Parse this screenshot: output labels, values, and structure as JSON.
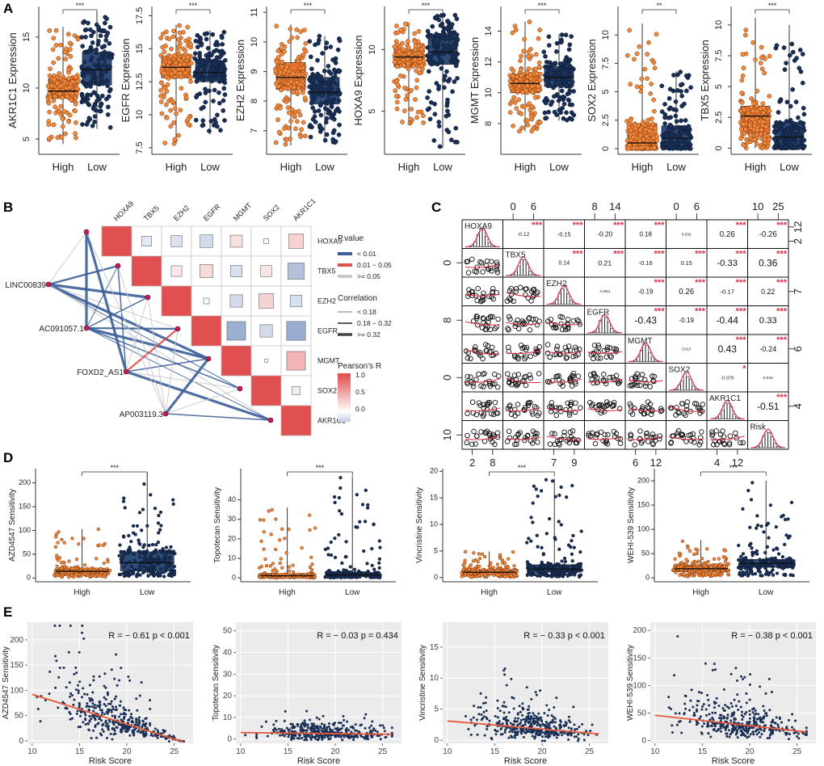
{
  "colors": {
    "high": "#e8732a",
    "high_dot": "#f08a3c",
    "low": "#2e4d7b",
    "low_dot": "#1a2f55",
    "heat_red": "#e05050",
    "heat_blue": "#7f97c4",
    "edge_sig": "#3b5e9a",
    "edge_mid": "#d84a4a",
    "edge_ns": "#c8c8c8",
    "node": "#c8185a",
    "star": "#e0304a",
    "fit": "#e85a3a",
    "grid_bg": "#ebebeb"
  },
  "panel_labels": [
    "A",
    "B",
    "C",
    "D",
    "E"
  ],
  "panelA": [
    {
      "ylabel": "AKR1C1 Expression",
      "sig": "***",
      "ticks": [
        5,
        10,
        15
      ],
      "ylim": [
        3.5,
        18
      ],
      "high": {
        "q1": 9.0,
        "med": 9.7,
        "q3": 10.9,
        "lo": 4.5,
        "hi": 16.0
      },
      "low": {
        "q1": 10.3,
        "med": 11.8,
        "q3": 13.5,
        "lo": 6.0,
        "hi": 17.5
      }
    },
    {
      "ylabel": "EGFR Expression",
      "sig": "***",
      "ticks": [
        7.5,
        10.0,
        12.5,
        15.0,
        17.5
      ],
      "ylim": [
        7.0,
        18.2
      ],
      "high": {
        "q1": 12.8,
        "med": 13.6,
        "q3": 14.3,
        "lo": 7.8,
        "hi": 16.8
      },
      "low": {
        "q1": 12.5,
        "med": 13.2,
        "q3": 14.0,
        "lo": 8.5,
        "hi": 16.4
      }
    },
    {
      "ylabel": "EZH2 Expression",
      "sig": "***",
      "ticks": [
        7,
        8,
        9,
        10,
        11
      ],
      "ylim": [
        6.2,
        11.2
      ],
      "high": {
        "q1": 8.4,
        "med": 8.8,
        "q3": 9.3,
        "lo": 6.5,
        "hi": 10.6
      },
      "low": {
        "q1": 7.9,
        "med": 8.3,
        "q3": 8.8,
        "lo": 6.6,
        "hi": 10.2
      }
    },
    {
      "ylabel": "HOXA9 Expression",
      "sig": "***",
      "ticks": [
        5,
        10
      ],
      "ylim": [
        1.5,
        13.5
      ],
      "high": {
        "q1": 8.6,
        "med": 9.4,
        "q3": 10.0,
        "lo": 4.0,
        "hi": 12.2
      },
      "low": {
        "q1": 8.8,
        "med": 9.8,
        "q3": 11.2,
        "lo": 2.0,
        "hi": 12.8
      }
    },
    {
      "ylabel": "MGMT Expression",
      "sig": "***",
      "ticks": [
        8,
        10,
        12,
        14
      ],
      "ylim": [
        6.0,
        15.6
      ],
      "high": {
        "q1": 10.0,
        "med": 10.6,
        "q3": 11.2,
        "lo": 7.5,
        "hi": 14.6
      },
      "low": {
        "q1": 10.4,
        "med": 11.0,
        "q3": 11.7,
        "lo": 8.2,
        "hi": 13.8
      }
    },
    {
      "ylabel": "SOX2 Expression",
      "sig": "**",
      "ticks": [
        0.0,
        2.5,
        5.0,
        7.5,
        10.0
      ],
      "ylim": [
        -0.5,
        12.5
      ],
      "high": {
        "q1": 0.1,
        "med": 0.5,
        "q3": 2.2,
        "lo": 0.0,
        "hi": 11.0
      },
      "low": {
        "q1": 0.1,
        "med": 0.9,
        "q3": 2.0,
        "lo": 0.0,
        "hi": 6.8
      }
    },
    {
      "ylabel": "TBX5 Expression",
      "sig": "***",
      "ticks": [
        0.0,
        2.5,
        5.0,
        7.5,
        10.0
      ],
      "ylim": [
        -0.5,
        11.5
      ],
      "high": {
        "q1": 1.2,
        "med": 2.6,
        "q3": 3.4,
        "lo": 0.0,
        "hi": 10.6
      },
      "low": {
        "q1": 0.1,
        "med": 0.9,
        "q3": 2.1,
        "lo": 0.0,
        "hi": 10.0
      }
    }
  ],
  "panelA_x": [
    "High",
    "Low"
  ],
  "panelB": {
    "genes": [
      "HOXA9",
      "TBX5",
      "EZH2",
      "EGFR",
      "MGMT",
      "SOX2",
      "AKR1C1"
    ],
    "lncs": [
      "LINC00839",
      "AC091057.1",
      "FOXD2_AS1",
      "AP003119.3"
    ],
    "corr": [
      [
        1,
        -0.12,
        -0.15,
        -0.2,
        0.18,
        0.03,
        0.26
      ],
      [
        -0.12,
        1,
        0.14,
        0.21,
        -0.16,
        0.15,
        -0.33
      ],
      [
        -0.15,
        0.14,
        1,
        -0.04,
        -0.19,
        0.26,
        -0.17
      ],
      [
        -0.2,
        0.21,
        -0.04,
        1,
        -0.43,
        -0.19,
        -0.44
      ],
      [
        0.18,
        -0.16,
        -0.19,
        -0.43,
        1,
        0.01,
        0.43
      ],
      [
        0.03,
        0.15,
        0.26,
        -0.19,
        0.01,
        1,
        -0.08
      ],
      [
        0.26,
        -0.33,
        -0.17,
        -0.44,
        0.43,
        -0.08,
        1
      ]
    ],
    "legend": {
      "pvalue_title": "P.value",
      "pvalue_items": [
        "< 0.01",
        "0.01 − 0.05",
        ">= 0.05"
      ],
      "corr_title": "Correlation",
      "corr_items": [
        "< 0.18",
        "0.18 − 0.32",
        ">= 0.32"
      ],
      "pearson_title": "Pearson's R",
      "pearson_ticks": [
        "1.0",
        "0.5",
        "0.0"
      ]
    }
  },
  "panelC": {
    "vars": [
      "HOXA9",
      "TBX5",
      "EZH2",
      "EGFR",
      "MGMT",
      "SOX2",
      "AKR1C1",
      "Risk"
    ],
    "upper": [
      [
        "",
        "-0.12",
        "-0.15",
        "-0.20",
        "0.18",
        "0.032",
        "0.26",
        "-0.26"
      ],
      [
        "",
        "",
        "0.14",
        "0.21",
        "-0.16",
        "0.15",
        "-0.33",
        "0.36"
      ],
      [
        "",
        "",
        "",
        "-0.0041",
        "-0.19",
        "0.26",
        "-0.17",
        "0.22"
      ],
      [
        "",
        "",
        "",
        "",
        "-0.43",
        "-0.19",
        "-0.44",
        "0.33"
      ],
      [
        "",
        "",
        "",
        "",
        "",
        "0.013",
        "0.43",
        "-0.24"
      ],
      [
        "",
        "",
        "",
        "",
        "",
        "",
        "-0.079",
        "0.044"
      ],
      [
        "",
        "",
        "",
        "",
        "",
        "",
        "",
        "-0.51"
      ]
    ],
    "stars": [
      [
        "",
        "***",
        "***",
        "***",
        "***",
        "",
        "***",
        "***"
      ],
      [
        "",
        "",
        "***",
        "***",
        "***",
        "***",
        "***",
        "***"
      ],
      [
        "",
        "",
        "",
        "",
        "***",
        "***",
        "***",
        "***"
      ],
      [
        "",
        "",
        "",
        "",
        "***",
        "***",
        "***",
        "***"
      ],
      [
        "",
        "",
        "",
        "",
        "",
        "",
        "***",
        "***"
      ],
      [
        "",
        "",
        "",
        "",
        "",
        "",
        "*",
        ""
      ],
      [
        "",
        "",
        "",
        "",
        "",
        "",
        "",
        "***"
      ]
    ],
    "top_ticks": [
      [
        "0",
        "6"
      ],
      [
        "8",
        "14"
      ],
      [
        "0",
        "6"
      ],
      [
        "10",
        "25"
      ]
    ],
    "right_ticks": [
      [
        "2",
        "12"
      ],
      [
        "7"
      ],
      [
        "6"
      ],
      [
        "4"
      ]
    ],
    "left_ticks": [
      [
        "0"
      ],
      [
        "8"
      ],
      [
        "0"
      ],
      [
        "10"
      ]
    ],
    "bottom_ticks": [
      [
        "2",
        "8"
      ],
      [
        "7",
        "9"
      ],
      [
        "6",
        "12"
      ],
      [
        "4",
        "12"
      ]
    ]
  },
  "panelD": [
    {
      "ylabel": "AZD4547 Sensitivity",
      "sig": "***",
      "ticks": [
        0,
        50,
        100,
        150,
        200
      ],
      "ylim": [
        -8,
        230
      ],
      "high": {
        "q1": 9,
        "med": 14,
        "q3": 19,
        "lo": 2,
        "hi": 103
      },
      "low": {
        "q1": 15,
        "med": 32,
        "q3": 55,
        "lo": 3,
        "hi": 222
      }
    },
    {
      "ylabel": "Topotecan Sensitivity",
      "sig": "***",
      "ticks": [
        0,
        10,
        20,
        30,
        40
      ],
      "ylim": [
        -2,
        56
      ],
      "high": {
        "q1": 0.6,
        "med": 1.1,
        "q3": 1.8,
        "lo": 0.1,
        "hi": 36
      },
      "low": {
        "q1": 0.8,
        "med": 1.5,
        "q3": 2.7,
        "lo": 0.1,
        "hi": 52
      }
    },
    {
      "ylabel": "Vincristine Sensitivity",
      "sig": "***",
      "ticks": [
        0,
        5,
        10,
        15,
        20
      ],
      "ylim": [
        -0.8,
        20.5
      ],
      "high": {
        "q1": 0.6,
        "med": 1.0,
        "q3": 1.5,
        "lo": 0.1,
        "hi": 4.9
      },
      "low": {
        "q1": 1.0,
        "med": 1.6,
        "q3": 2.4,
        "lo": 0.1,
        "hi": 18.6
      }
    },
    {
      "ylabel": "WEHI-539 Sensitivity",
      "sig": "***",
      "ticks": [
        0,
        50,
        100,
        150,
        200
      ],
      "ylim": [
        -8,
        225
      ],
      "high": {
        "q1": 13,
        "med": 19,
        "q3": 26,
        "lo": 3,
        "hi": 78
      },
      "low": {
        "q1": 22,
        "med": 30,
        "q3": 38,
        "lo": 4,
        "hi": 200
      }
    }
  ],
  "panelD_x": [
    "High",
    "Low"
  ],
  "panelE": [
    {
      "ylabel": "AZD4547 Sensitivity",
      "r_text": "R = − 0.61  p < 0.001",
      "xlim": [
        9.5,
        27
      ],
      "ylim": [
        -5,
        235
      ],
      "xticks": [
        10,
        15,
        20,
        25
      ],
      "yticks": [
        0,
        50,
        100,
        150,
        200
      ],
      "slope": -5.9,
      "intercept": 151,
      "spread": 0.55
    },
    {
      "ylabel": "Topotecan Sensitivity",
      "r_text": "R = − 0.03  p = 0.434",
      "xlim": [
        9.5,
        27
      ],
      "ylim": [
        -2,
        54
      ],
      "xticks": [
        10,
        15,
        20,
        25
      ],
      "yticks": [
        0,
        10,
        20,
        30,
        40,
        50
      ],
      "slope": -0.05,
      "intercept": 3.5,
      "spread": 0.9
    },
    {
      "ylabel": "Vincristine Sensitivity",
      "r_text": "R = − 0.33  p < 0.001",
      "xlim": [
        9.5,
        27
      ],
      "ylim": [
        -0.5,
        19
      ],
      "xticks": [
        10,
        15,
        20,
        25
      ],
      "yticks": [
        0,
        5,
        10,
        15
      ],
      "slope": -0.13,
      "intercept": 4.4,
      "spread": 0.7
    },
    {
      "ylabel": "WEHI-539 Sensitivity",
      "r_text": "R = − 0.38  p < 0.001",
      "xlim": [
        9.5,
        27
      ],
      "ylim": [
        -5,
        215
      ],
      "xticks": [
        10,
        15,
        20,
        25
      ],
      "yticks": [
        0,
        50,
        100,
        150,
        200
      ],
      "slope": -1.9,
      "intercept": 65,
      "spread": 0.6
    }
  ],
  "panelE_xlabel": "Risk Score",
  "chart_data": [
    {
      "type": "box",
      "panel": "A",
      "categories": [
        "High",
        "Low"
      ],
      "series": [
        {
          "name": "AKR1C1 Expression",
          "high_median": 9.7,
          "low_median": 11.8
        },
        {
          "name": "EGFR Expression",
          "high_median": 13.6,
          "low_median": 13.2
        },
        {
          "name": "EZH2 Expression",
          "high_median": 8.8,
          "low_median": 8.3
        },
        {
          "name": "HOXA9 Expression",
          "high_median": 9.4,
          "low_median": 9.8
        },
        {
          "name": "MGMT Expression",
          "high_median": 10.6,
          "low_median": 11.0
        },
        {
          "name": "SOX2 Expression",
          "high_median": 0.5,
          "low_median": 0.9
        },
        {
          "name": "TBX5 Expression",
          "high_median": 2.6,
          "low_median": 0.9
        }
      ]
    },
    {
      "type": "heatmap",
      "panel": "B"
    },
    {
      "type": "scatter",
      "panel": "C"
    },
    {
      "type": "box",
      "panel": "D",
      "categories": [
        "High",
        "Low"
      ],
      "series": [
        {
          "name": "AZD4547 Sensitivity",
          "high_median": 14,
          "low_median": 32
        },
        {
          "name": "Topotecan Sensitivity",
          "high_median": 1.1,
          "low_median": 1.5
        },
        {
          "name": "Vincristine Sensitivity",
          "high_median": 1.0,
          "low_median": 1.6
        },
        {
          "name": "WEHI-539 Sensitivity",
          "high_median": 19,
          "low_median": 30
        }
      ]
    },
    {
      "type": "scatter",
      "panel": "E",
      "xlabel": "Risk Score",
      "series": [
        {
          "name": "AZD4547 Sensitivity",
          "R": -0.61,
          "p": "< 0.001"
        },
        {
          "name": "Topotecan Sensitivity",
          "R": -0.03,
          "p": "0.434"
        },
        {
          "name": "Vincristine Sensitivity",
          "R": -0.33,
          "p": "< 0.001"
        },
        {
          "name": "WEHI-539 Sensitivity",
          "R": -0.38,
          "p": "< 0.001"
        }
      ]
    }
  ]
}
